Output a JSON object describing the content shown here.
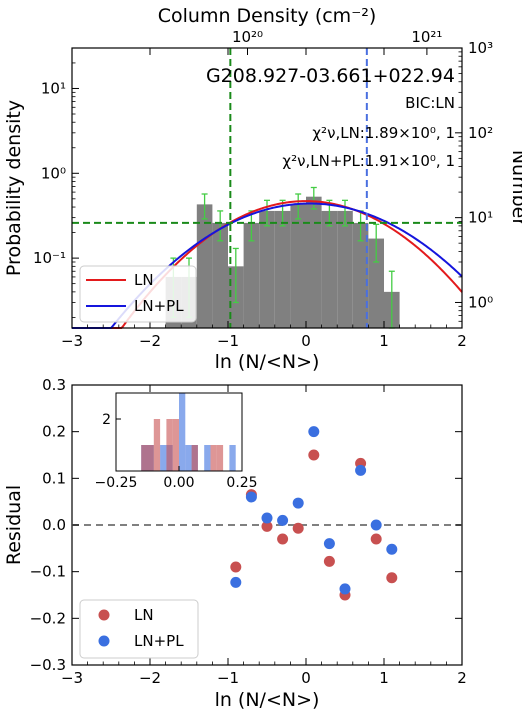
{
  "chart_data": [
    {
      "type": "bar",
      "title": "G208.927-03.661+022.94",
      "annotations": [
        "BIC:LN",
        "χ²ν,LN:1.89×10⁰, 1",
        "χ²ν,LN+PL:1.91×10⁰, 1"
      ],
      "xlabel": "ln (N/<N>)",
      "ylabel": "Probability density",
      "y2label": "Number",
      "x2label": "Column Density (cm⁻²)",
      "xlim": [
        -3,
        2
      ],
      "ylim": [
        0.015,
        30
      ],
      "yscale": "log",
      "xticks": [
        "−3",
        "−2",
        "−1",
        "0",
        "1",
        "2"
      ],
      "yticks": [
        "10⁻¹",
        "10⁰",
        "10¹"
      ],
      "y2ticks": [
        "10⁰",
        "10¹",
        "10²",
        "10³"
      ],
      "x2ticks": [
        "10²⁰",
        "10²¹"
      ],
      "histogram": {
        "edges": [
          -1.8,
          -1.6,
          -1.4,
          -1.2,
          -1.0,
          -0.8,
          -0.6,
          -0.4,
          -0.2,
          0.0,
          0.2,
          0.4,
          0.6,
          0.8,
          1.0,
          1.2
        ],
        "values": [
          0.06,
          0.06,
          0.43,
          0.26,
          0.08,
          0.26,
          0.36,
          0.36,
          0.43,
          0.53,
          0.36,
          0.36,
          0.26,
          0.17,
          0.04
        ],
        "errors": [
          0.04,
          0.04,
          0.14,
          0.1,
          0.05,
          0.1,
          0.12,
          0.12,
          0.14,
          0.15,
          0.12,
          0.12,
          0.1,
          0.08,
          0.03
        ]
      },
      "series": [
        {
          "name": "LN",
          "color": "#e31a1c",
          "mu": 0.0,
          "sigma": 0.9,
          "amp": 0.47
        },
        {
          "name": "LN+PL",
          "color": "#1515dd",
          "mu": 0.05,
          "sigma": 0.98,
          "amp": 0.44
        }
      ],
      "vlines": [
        {
          "x": -0.97,
          "color": "#1a8a1a"
        },
        {
          "x": 0.78,
          "color": "#4a6fe0"
        }
      ],
      "hline": {
        "y": 0.26,
        "color": "#1a8a1a"
      },
      "legend": "lower-left"
    },
    {
      "type": "scatter",
      "xlabel": "ln (N/<N>)",
      "ylabel": "Residual",
      "xlim": [
        -3,
        2
      ],
      "ylim": [
        -0.3,
        0.3
      ],
      "xticks": [
        "−3",
        "−2",
        "−1",
        "0",
        "1",
        "2"
      ],
      "yticks": [
        "−0.3",
        "−0.2",
        "−0.1",
        "0.0",
        "0.1",
        "0.2",
        "0.3"
      ],
      "hline": 0.0,
      "series": [
        {
          "name": "LN",
          "color": "#c85050",
          "x": [
            -0.9,
            -0.7,
            -0.5,
            -0.3,
            -0.1,
            0.1,
            0.3,
            0.5,
            0.7,
            0.9,
            1.1
          ],
          "y": [
            -0.09,
            0.065,
            -0.003,
            -0.03,
            -0.007,
            0.15,
            -0.078,
            -0.15,
            0.132,
            -0.03,
            -0.113
          ]
        },
        {
          "name": "LN+PL",
          "color": "#3a6fe0",
          "x": [
            -0.9,
            -0.7,
            -0.5,
            -0.3,
            -0.1,
            0.1,
            0.3,
            0.5,
            0.7,
            0.9,
            1.1
          ],
          "y": [
            -0.123,
            0.06,
            0.015,
            0.01,
            0.047,
            0.2,
            -0.04,
            -0.137,
            0.117,
            0.0,
            -0.052
          ]
        }
      ],
      "legend": "lower-left",
      "inset": {
        "type": "histogram",
        "xlim": [
          -0.25,
          0.25
        ],
        "ylim": [
          0,
          3
        ],
        "xticks": [
          "−0.25",
          "0.00",
          "0.25"
        ],
        "yticks": [
          "2"
        ],
        "LN_residuals": [
          -0.09,
          0.065,
          -0.003,
          -0.03,
          -0.007,
          0.15,
          -0.078,
          -0.15,
          0.132,
          -0.03,
          -0.113
        ],
        "LNPL_residuals": [
          -0.123,
          0.06,
          0.015,
          0.01,
          0.047,
          0.2,
          -0.04,
          -0.137,
          0.117,
          0.0,
          -0.052
        ]
      }
    }
  ]
}
